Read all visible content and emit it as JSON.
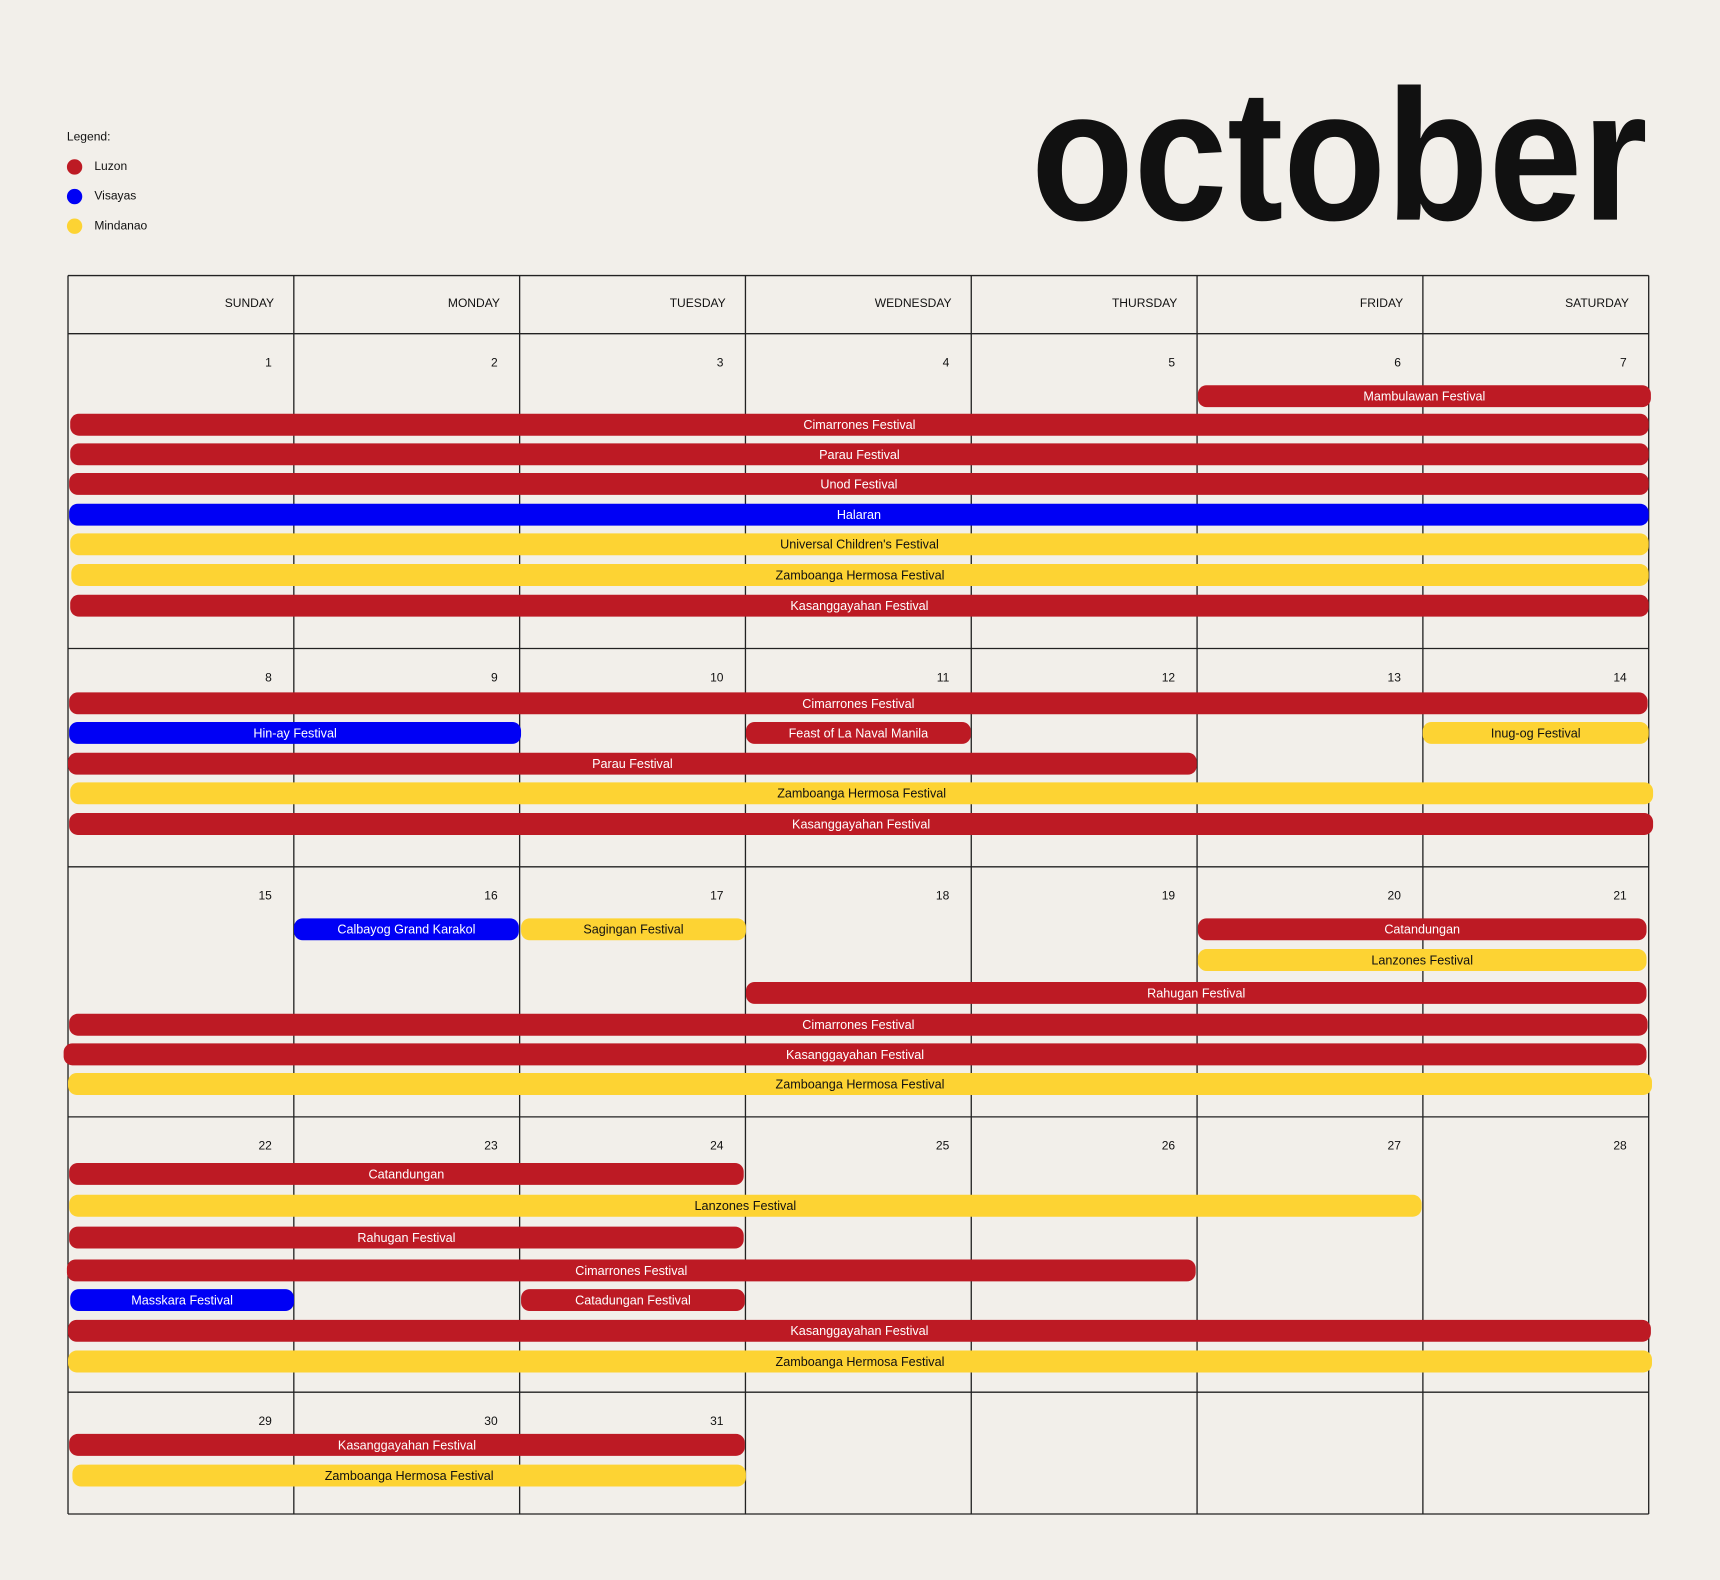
{
  "legend": {
    "title": "Legend:",
    "items": [
      {
        "label": "Luzon",
        "color": "#bd1a24"
      },
      {
        "label": "Visayas",
        "color": "#0000f5"
      },
      {
        "label": "Mindanao",
        "color": "#fdd333"
      }
    ]
  },
  "month": "october",
  "weekdays": [
    "SUNDAY",
    "MONDAY",
    "TUESDAY",
    "WEDNESDAY",
    "THURSDAY",
    "FRIDAY",
    "SATURDAY"
  ],
  "weeks": [
    {
      "days": [
        1,
        2,
        3,
        4,
        5,
        6,
        7
      ],
      "events": [
        {
          "label": "Mambulawan Festival",
          "color": "#bd1a24"
        },
        {
          "label": "Cimarrones Festival",
          "color": "#bd1a24"
        },
        {
          "label": "Parau Festival",
          "color": "#bd1a24"
        },
        {
          "label": "Unod Festival",
          "color": "#bd1a24"
        },
        {
          "label": "Halaran",
          "color": "#0000f5"
        },
        {
          "label": "Universal Children's Festival",
          "color": "#fdd333"
        },
        {
          "label": "Zamboanga Hermosa Festival",
          "color": "#fdd333"
        },
        {
          "label": "Kasanggayahan Festival",
          "color": "#bd1a24"
        }
      ]
    },
    {
      "days": [
        8,
        9,
        10,
        11,
        12,
        13,
        14
      ],
      "events": [
        {
          "label": "Cimarrones Festival",
          "color": "#bd1a24"
        },
        {
          "label": "Hin-ay Festival",
          "color": "#0000f5"
        },
        {
          "label": "Feast of La Naval Manila",
          "color": "#bd1a24"
        },
        {
          "label": "Inug-og Festival",
          "color": "#fdd333"
        },
        {
          "label": "Parau Festival",
          "color": "#bd1a24"
        },
        {
          "label": "Zamboanga Hermosa Festival",
          "color": "#fdd333"
        },
        {
          "label": "Kasanggayahan Festival",
          "color": "#bd1a24"
        }
      ]
    },
    {
      "days": [
        15,
        16,
        17,
        18,
        19,
        20,
        21
      ],
      "events": [
        {
          "label": "Calbayog Grand Karakol",
          "color": "#0000f5"
        },
        {
          "label": "Sagingan Festival",
          "color": "#fdd333"
        },
        {
          "label": "Catandungan",
          "color": "#bd1a24"
        },
        {
          "label": "Lanzones Festival",
          "color": "#fdd333"
        },
        {
          "label": "Rahugan Festival",
          "color": "#bd1a24"
        },
        {
          "label": "Cimarrones Festival",
          "color": "#bd1a24"
        },
        {
          "label": "Kasanggayahan Festival",
          "color": "#bd1a24"
        },
        {
          "label": "Zamboanga Hermosa Festival",
          "color": "#fdd333"
        }
      ]
    },
    {
      "days": [
        22,
        23,
        24,
        25,
        26,
        27,
        28
      ],
      "events": [
        {
          "label": "Catandungan",
          "color": "#bd1a24"
        },
        {
          "label": "Lanzones Festival",
          "color": "#fdd333"
        },
        {
          "label": "Rahugan Festival",
          "color": "#bd1a24"
        },
        {
          "label": "Cimarrones Festival",
          "color": "#bd1a24"
        },
        {
          "label": "Masskara Festival",
          "color": "#0000f5"
        },
        {
          "label": "Catadungan Festival",
          "color": "#bd1a24"
        },
        {
          "label": "Kasanggayahan Festival",
          "color": "#bd1a24"
        },
        {
          "label": "Zamboanga Hermosa Festival",
          "color": "#fdd333"
        }
      ]
    },
    {
      "days": [
        29,
        30,
        31,
        null,
        null,
        null,
        null
      ],
      "events": [
        {
          "label": "Kasanggayahan Festival",
          "color": "#bd1a24"
        },
        {
          "label": "Zamboanga Hermosa Festival",
          "color": "#fdd333"
        }
      ]
    }
  ]
}
